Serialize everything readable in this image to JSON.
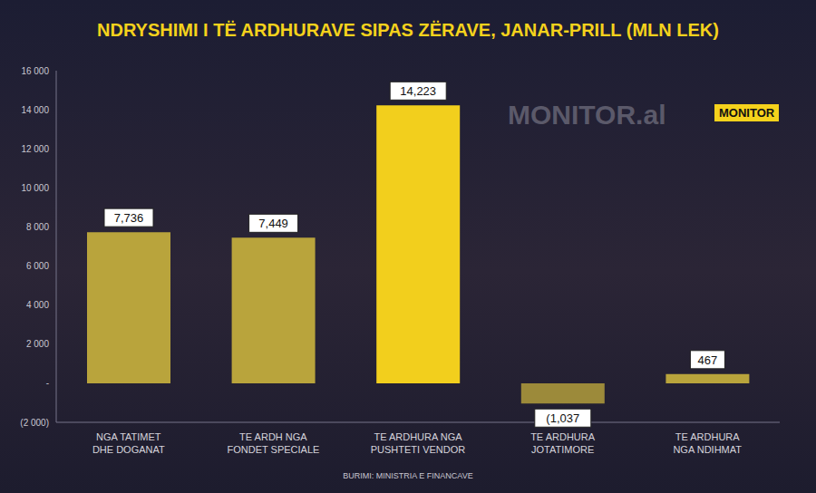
{
  "chart_data": {
    "type": "bar",
    "title": "NDRYSHIMI I TË ARDHURAVE SIPAS ZËRAVE, JANAR-PRILL (MLN LEK)",
    "source": "BURIMI: MINISTRIA E FINANCAVE",
    "annotations": [
      "MONITOR.al",
      "MONITOR"
    ],
    "categories": [
      "NGA TATIMET DHE DOGANAT",
      "TE ARDH NGA FONDET SPECIALE",
      "TE ARDHURA NGA PUSHTETI VENDOR",
      "TE ARDHURA JOTATIMORE",
      "TE ARDHURA NGA NDIHMAT"
    ],
    "values": [
      7736,
      7449,
      14223,
      -1037,
      467
    ],
    "value_labels": [
      "7,736",
      "7,449",
      "14,223",
      "(1,037",
      "467"
    ],
    "colors": [
      "#b9a43c",
      "#b9a43c",
      "#f2cf1d",
      "#9c8a3a",
      "#b9a43c"
    ],
    "ylim": [
      -2000,
      16000
    ],
    "yticks": [
      {
        "value": -2000,
        "label": "(2 000)"
      },
      {
        "value": 0,
        "label": "-"
      },
      {
        "value": 2000,
        "label": "2 000"
      },
      {
        "value": 4000,
        "label": "4 000"
      },
      {
        "value": 6000,
        "label": "6 000"
      },
      {
        "value": 8000,
        "label": "8 000"
      },
      {
        "value": 10000,
        "label": "10 000"
      },
      {
        "value": 12000,
        "label": "12 000"
      },
      {
        "value": 14000,
        "label": "14 000"
      },
      {
        "value": 16000,
        "label": "16 000"
      }
    ],
    "grid": false,
    "data_labels": true
  }
}
